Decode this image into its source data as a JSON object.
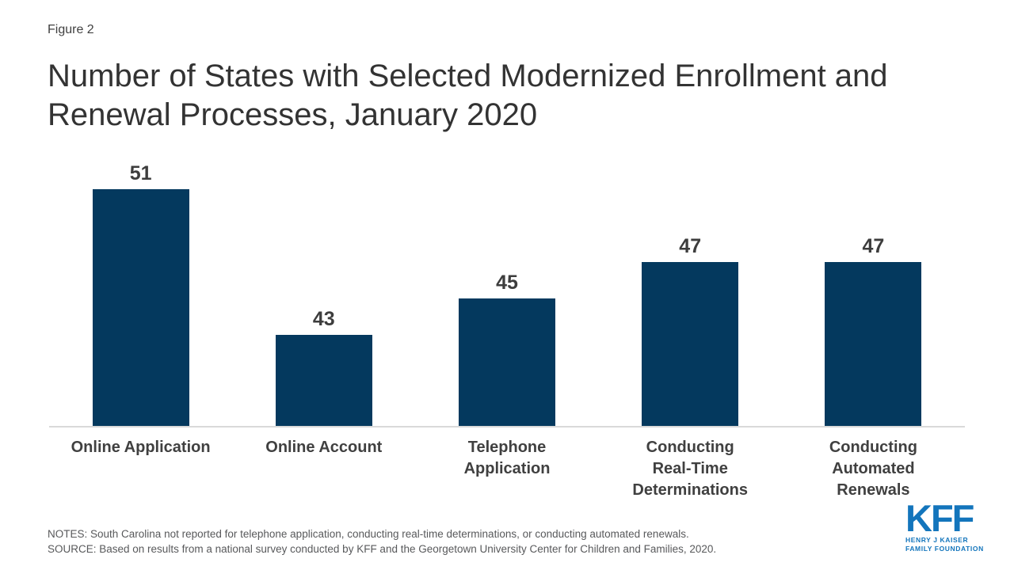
{
  "header": {
    "figure_label": "Figure 2",
    "title": "Number of States with Selected Modernized Enrollment and Renewal Processes, January 2020"
  },
  "chart_data": {
    "type": "bar",
    "categories": [
      "Online Application",
      "Online Account",
      "Telephone\nApplication",
      "Conducting\nReal-Time\nDeterminations",
      "Conducting\nAutomated\nRenewals"
    ],
    "values": [
      51,
      43,
      45,
      47,
      47
    ],
    "title": "Number of States with Selected Modernized Enrollment and Renewal Processes, January 2020",
    "xlabel": "",
    "ylabel": "",
    "ylim": [
      38,
      53
    ],
    "bar_color": "#04395e",
    "value_label_color": "#3d3d3d",
    "axis_line_color": "#d9d9d9",
    "grid": false,
    "legend": "none",
    "value_labels_shown": true
  },
  "footer": {
    "notes": "NOTES: South Carolina not reported for telephone application, conducting real-time determinations, or conducting automated renewals.",
    "source": "SOURCE: Based on results from a national survey conducted by KFF and the Georgetown University Center for Children and Families, 2020."
  },
  "logo": {
    "text": "KFF",
    "subtitle_line1": "HENRY J KAISER",
    "subtitle_line2": "FAMILY FOUNDATION",
    "color": "#1375bc"
  }
}
